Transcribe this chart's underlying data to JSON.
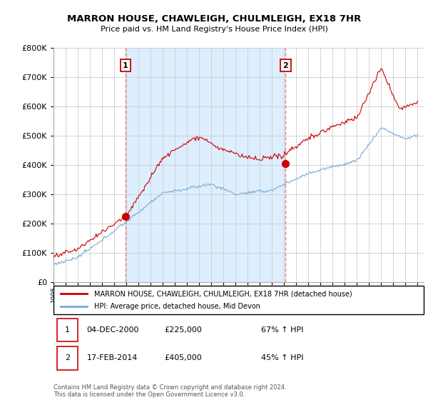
{
  "title": "MARRON HOUSE, CHAWLEIGH, CHULMLEIGH, EX18 7HR",
  "subtitle": "Price paid vs. HM Land Registry's House Price Index (HPI)",
  "ylim": [
    0,
    800000
  ],
  "xlim_start": 1995.0,
  "xlim_end": 2025.5,
  "red_line_color": "#cc0000",
  "blue_line_color": "#7ba7d4",
  "dashed_line_color": "#e88080",
  "shade_color": "#ddeeff",
  "marker1_x": 2000.92,
  "marker1_y": 225000,
  "marker2_x": 2014.12,
  "marker2_y": 405000,
  "legend_label_red": "MARRON HOUSE, CHAWLEIGH, CHULMLEIGH, EX18 7HR (detached house)",
  "legend_label_blue": "HPI: Average price, detached house, Mid Devon",
  "table_row1": [
    "1",
    "04-DEC-2000",
    "£225,000",
    "67% ↑ HPI"
  ],
  "table_row2": [
    "2",
    "17-FEB-2014",
    "£405,000",
    "45% ↑ HPI"
  ],
  "footnote": "Contains HM Land Registry data © Crown copyright and database right 2024.\nThis data is licensed under the Open Government Licence v3.0.",
  "bg_color": "#ffffff",
  "grid_color": "#cccccc"
}
